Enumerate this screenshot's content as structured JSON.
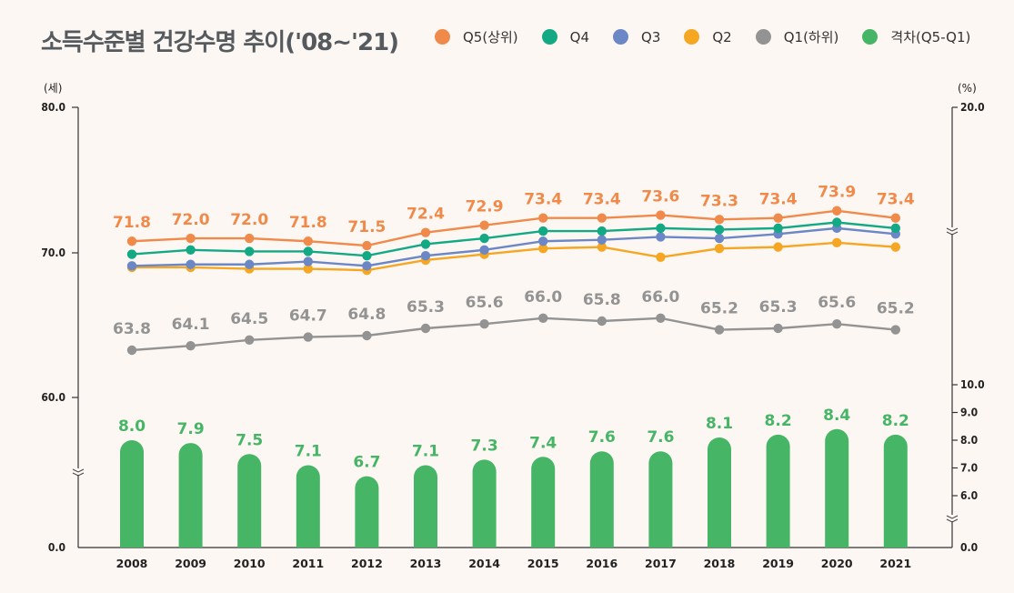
{
  "title": "소득수준별 건강수명 추이('08~'21)",
  "legend": [
    {
      "label": "Q5(상위)",
      "color": "#f08a4b"
    },
    {
      "label": "Q4",
      "color": "#13a985"
    },
    {
      "label": "Q3",
      "color": "#6c87c5"
    },
    {
      "label": "Q2",
      "color": "#f5a623"
    },
    {
      "label": "Q1(하위)",
      "color": "#939393"
    },
    {
      "label": "격차(Q5-Q1)",
      "color": "#46b566"
    }
  ],
  "chart_data": {
    "type": "line+bar",
    "title": "소득수준별 건강수명 추이('08~'21)",
    "categories": [
      "2008",
      "2009",
      "2010",
      "2011",
      "2012",
      "2013",
      "2014",
      "2015",
      "2016",
      "2017",
      "2018",
      "2019",
      "2020",
      "2021"
    ],
    "left_axis": {
      "unit": "(세)",
      "ticks": [
        "80.0",
        "70.0",
        "60.0",
        "0.0"
      ],
      "range": [
        0,
        80
      ],
      "broken": true
    },
    "right_axis": {
      "unit": "(%)",
      "ticks": [
        "20.0",
        "10.0",
        "9.0",
        "8.0",
        "7.0",
        "6.0",
        "0.0"
      ],
      "range": [
        0,
        20
      ],
      "broken": true
    },
    "series": [
      {
        "name": "Q5(상위)",
        "type": "line",
        "axis": "left",
        "color": "#f08a4b",
        "labeled": true,
        "values": [
          71.8,
          72.0,
          72.0,
          71.8,
          71.5,
          72.4,
          72.9,
          73.4,
          73.4,
          73.6,
          73.3,
          73.4,
          73.9,
          73.4
        ]
      },
      {
        "name": "Q4",
        "type": "line",
        "axis": "left",
        "color": "#13a985",
        "labeled": false,
        "values": [
          69.9,
          70.2,
          70.1,
          70.1,
          69.8,
          70.6,
          71.0,
          71.5,
          71.5,
          71.7,
          71.6,
          71.7,
          72.1,
          71.7
        ]
      },
      {
        "name": "Q3",
        "type": "line",
        "axis": "left",
        "color": "#6c87c5",
        "labeled": false,
        "values": [
          69.1,
          69.2,
          69.2,
          69.4,
          69.1,
          69.8,
          70.2,
          70.8,
          70.9,
          71.1,
          71.0,
          71.3,
          71.7,
          71.3
        ]
      },
      {
        "name": "Q2",
        "type": "line",
        "axis": "left",
        "color": "#f5a623",
        "labeled": false,
        "values": [
          69.0,
          69.0,
          68.9,
          68.9,
          68.8,
          69.5,
          69.9,
          70.3,
          70.4,
          69.7,
          70.3,
          70.4,
          70.7,
          70.4
        ]
      },
      {
        "name": "Q1(하위)",
        "type": "line",
        "axis": "left",
        "color": "#939393",
        "labeled": true,
        "values": [
          63.8,
          64.1,
          64.5,
          64.7,
          64.8,
          65.3,
          65.6,
          66.0,
          65.8,
          66.0,
          65.2,
          65.3,
          65.6,
          65.2
        ]
      },
      {
        "name": "격차(Q5-Q1)",
        "type": "bar",
        "axis": "right",
        "color": "#46b566",
        "labeled": true,
        "values": [
          8.0,
          7.9,
          7.5,
          7.1,
          6.7,
          7.1,
          7.3,
          7.4,
          7.6,
          7.6,
          8.1,
          8.2,
          8.4,
          8.2
        ]
      }
    ]
  }
}
